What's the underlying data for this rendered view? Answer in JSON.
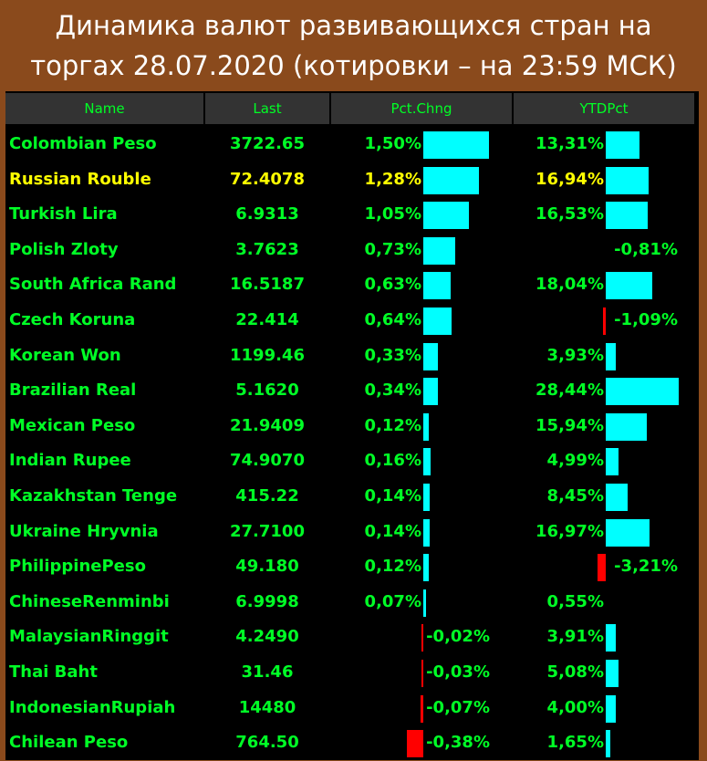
{
  "title_line1": "Динамика валют развивающихся стран на",
  "title_line2": "торгах 28.07.2020 (котировки – на 23:59 МСК)",
  "columns": {
    "name": "Name",
    "last": "Last",
    "pct": "Pct.Chng",
    "ytd": "YTDPct"
  },
  "colors": {
    "text": "#00ff26",
    "highlight": "#ffff00",
    "positive_bar": "#00ffff",
    "negative_bar": "#ff0000",
    "background": "#000000",
    "frame": "#8a4a1c"
  },
  "rows": [
    {
      "name": "Colombian Peso",
      "last": "3722.65",
      "pct": "1,50%",
      "ytd": "13,31%",
      "pct_value": 1.5,
      "ytd_value": 13.31
    },
    {
      "name": "Russian Rouble",
      "last": "72.4078",
      "pct": "1,28%",
      "ytd": "16,94%",
      "pct_value": 1.28,
      "ytd_value": 16.94,
      "highlight": true
    },
    {
      "name": "Turkish Lira",
      "last": "6.9313",
      "pct": "1,05%",
      "ytd": "16,53%",
      "pct_value": 1.05,
      "ytd_value": 16.53
    },
    {
      "name": "Polish Zloty",
      "last": "3.7623",
      "pct": "0,73%",
      "ytd": "-0,81%",
      "pct_value": 0.73,
      "ytd_value": -0.81
    },
    {
      "name": "South Africa Rand",
      "last": "16.5187",
      "pct": "0,63%",
      "ytd": "18,04%",
      "pct_value": 0.63,
      "ytd_value": 18.04
    },
    {
      "name": "Czech Koruna",
      "last": "22.414",
      "pct": "0,64%",
      "ytd": "-1,09%",
      "pct_value": 0.64,
      "ytd_value": -1.09
    },
    {
      "name": "Korean Won",
      "last": "1199.46",
      "pct": "0,33%",
      "ytd": "3,93%",
      "pct_value": 0.33,
      "ytd_value": 3.93
    },
    {
      "name": "Brazilian Real",
      "last": "5.1620",
      "pct": "0,34%",
      "ytd": "28,44%",
      "pct_value": 0.34,
      "ytd_value": 28.44
    },
    {
      "name": "Mexican Peso",
      "last": "21.9409",
      "pct": "0,12%",
      "ytd": "15,94%",
      "pct_value": 0.12,
      "ytd_value": 15.94
    },
    {
      "name": "Indian Rupee",
      "last": "74.9070",
      "pct": "0,16%",
      "ytd": "4,99%",
      "pct_value": 0.16,
      "ytd_value": 4.99
    },
    {
      "name": "Kazakhstan Tenge",
      "last": "415.22",
      "pct": "0,14%",
      "ytd": "8,45%",
      "pct_value": 0.14,
      "ytd_value": 8.45
    },
    {
      "name": "Ukraine Hryvnia",
      "last": "27.7100",
      "pct": "0,14%",
      "ytd": "16,97%",
      "pct_value": 0.14,
      "ytd_value": 16.97
    },
    {
      "name": "PhilippinePeso",
      "last": "49.180",
      "pct": "0,12%",
      "ytd": "-3,21%",
      "pct_value": 0.12,
      "ytd_value": -3.21
    },
    {
      "name": "ChineseRenminbi",
      "last": "6.9998",
      "pct": "0,07%",
      "ytd": "0,55%",
      "pct_value": 0.07,
      "ytd_value": 0.55
    },
    {
      "name": "MalaysianRinggit",
      "last": "4.2490",
      "pct": "-0,02%",
      "ytd": "3,91%",
      "pct_value": -0.02,
      "ytd_value": 3.91
    },
    {
      "name": "Thai Baht",
      "last": "31.46",
      "pct": "-0,03%",
      "ytd": "5,08%",
      "pct_value": -0.03,
      "ytd_value": 5.08
    },
    {
      "name": "IndonesianRupiah",
      "last": "14480",
      "pct": "-0,07%",
      "ytd": "4,00%",
      "pct_value": -0.07,
      "ytd_value": 4.0
    },
    {
      "name": "Chilean Peso",
      "last": "764.50",
      "pct": "-0,38%",
      "ytd": "1,65%",
      "pct_value": -0.38,
      "ytd_value": 1.65
    }
  ]
}
